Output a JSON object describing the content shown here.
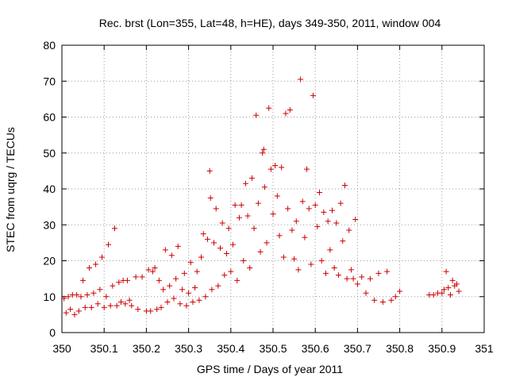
{
  "chart_data": {
    "type": "scatter",
    "title": "Rec. brst (Lon=355, Lat=48, h=HE), days 349-350, 2011, window 004",
    "xlabel": "GPS time / Days of year 2011",
    "ylabel": "STEC from uqrg / TECUs",
    "xlim": [
      350,
      351
    ],
    "ylim": [
      0,
      80
    ],
    "xticks": [
      350,
      350.1,
      350.2,
      350.3,
      350.4,
      350.5,
      350.6,
      350.7,
      350.8,
      350.9,
      351
    ],
    "xtick_labels": [
      "350",
      "350.1",
      "350.2",
      "350.3",
      "350.4",
      "350.5",
      "350.6",
      "350.7",
      "350.8",
      "350.9",
      "351"
    ],
    "yticks": [
      0,
      10,
      20,
      30,
      40,
      50,
      60,
      70,
      80
    ],
    "ytick_labels": [
      "0",
      "10",
      "20",
      "30",
      "40",
      "50",
      "60",
      "70",
      "80"
    ],
    "grid": true,
    "marker": "plus",
    "color": "#cc0000",
    "series": [
      {
        "name": "STEC",
        "points": [
          [
            350.005,
            9.5
          ],
          [
            350.01,
            5.5
          ],
          [
            350.015,
            10.0
          ],
          [
            350.02,
            6.5
          ],
          [
            350.025,
            10.5
          ],
          [
            350.03,
            5.0
          ],
          [
            350.035,
            10.5
          ],
          [
            350.04,
            6.0
          ],
          [
            350.045,
            10.0
          ],
          [
            350.05,
            14.5
          ],
          [
            350.055,
            7.0
          ],
          [
            350.06,
            10.5
          ],
          [
            350.065,
            18.0
          ],
          [
            350.07,
            7.0
          ],
          [
            350.075,
            11.0
          ],
          [
            350.08,
            19.0
          ],
          [
            350.085,
            8.0
          ],
          [
            350.09,
            12.0
          ],
          [
            350.095,
            21.0
          ],
          [
            350.1,
            7.0
          ],
          [
            350.105,
            10.0
          ],
          [
            350.11,
            24.5
          ],
          [
            350.115,
            7.5
          ],
          [
            350.12,
            13.0
          ],
          [
            350.125,
            29.0
          ],
          [
            350.13,
            7.5
          ],
          [
            350.135,
            14.0
          ],
          [
            350.14,
            8.5
          ],
          [
            350.145,
            14.5
          ],
          [
            350.15,
            8.0
          ],
          [
            350.155,
            14.5
          ],
          [
            350.16,
            9.0
          ],
          [
            350.165,
            7.5
          ],
          [
            350.175,
            15.5
          ],
          [
            350.18,
            6.5
          ],
          [
            350.19,
            15.5
          ],
          [
            350.2,
            6.0
          ],
          [
            350.205,
            17.5
          ],
          [
            350.21,
            6.0
          ],
          [
            350.215,
            17.0
          ],
          [
            350.22,
            18.0
          ],
          [
            350.225,
            6.5
          ],
          [
            350.23,
            14.5
          ],
          [
            350.235,
            7.0
          ],
          [
            350.24,
            12.0
          ],
          [
            350.245,
            23.0
          ],
          [
            350.25,
            8.5
          ],
          [
            350.255,
            13.0
          ],
          [
            350.26,
            21.5
          ],
          [
            350.265,
            9.5
          ],
          [
            350.27,
            15.0
          ],
          [
            350.275,
            24.0
          ],
          [
            350.28,
            8.0
          ],
          [
            350.285,
            12.0
          ],
          [
            350.29,
            16.5
          ],
          [
            350.295,
            7.5
          ],
          [
            350.3,
            11.0
          ],
          [
            350.305,
            19.5
          ],
          [
            350.31,
            8.5
          ],
          [
            350.315,
            12.5
          ],
          [
            350.32,
            17.0
          ],
          [
            350.325,
            9.0
          ],
          [
            350.33,
            21.0
          ],
          [
            350.335,
            27.5
          ],
          [
            350.34,
            10.0
          ],
          [
            350.345,
            26.0
          ],
          [
            350.35,
            45.0
          ],
          [
            350.352,
            37.5
          ],
          [
            350.355,
            12.0
          ],
          [
            350.36,
            25.0
          ],
          [
            350.365,
            34.5
          ],
          [
            350.37,
            13.0
          ],
          [
            350.375,
            23.5
          ],
          [
            350.38,
            30.5
          ],
          [
            350.385,
            16.0
          ],
          [
            350.39,
            22.0
          ],
          [
            350.395,
            29.0
          ],
          [
            350.4,
            17.0
          ],
          [
            350.405,
            24.5
          ],
          [
            350.41,
            35.5
          ],
          [
            350.415,
            14.5
          ],
          [
            350.42,
            32.0
          ],
          [
            350.425,
            35.5
          ],
          [
            350.43,
            20.0
          ],
          [
            350.435,
            41.5
          ],
          [
            350.44,
            32.5
          ],
          [
            350.445,
            18.0
          ],
          [
            350.45,
            43.0
          ],
          [
            350.455,
            29.0
          ],
          [
            350.46,
            60.5
          ],
          [
            350.465,
            36.0
          ],
          [
            350.47,
            22.5
          ],
          [
            350.475,
            50.0
          ],
          [
            350.478,
            51.0
          ],
          [
            350.48,
            40.5
          ],
          [
            350.485,
            25.0
          ],
          [
            350.49,
            62.5
          ],
          [
            350.495,
            45.5
          ],
          [
            350.5,
            33.0
          ],
          [
            350.505,
            46.5
          ],
          [
            350.51,
            38.0
          ],
          [
            350.515,
            27.0
          ],
          [
            350.52,
            46.0
          ],
          [
            350.525,
            21.0
          ],
          [
            350.53,
            61.0
          ],
          [
            350.535,
            34.5
          ],
          [
            350.54,
            62.0
          ],
          [
            350.545,
            28.5
          ],
          [
            350.55,
            20.5
          ],
          [
            350.555,
            31.0
          ],
          [
            350.56,
            17.5
          ],
          [
            350.565,
            70.5
          ],
          [
            350.57,
            36.5
          ],
          [
            350.575,
            26.5
          ],
          [
            350.58,
            45.5
          ],
          [
            350.585,
            34.5
          ],
          [
            350.59,
            19.0
          ],
          [
            350.595,
            66.0
          ],
          [
            350.6,
            35.5
          ],
          [
            350.605,
            29.5
          ],
          [
            350.61,
            39.0
          ],
          [
            350.615,
            20.0
          ],
          [
            350.62,
            33.5
          ],
          [
            350.625,
            16.5
          ],
          [
            350.63,
            31.0
          ],
          [
            350.635,
            23.0
          ],
          [
            350.64,
            34.0
          ],
          [
            350.645,
            18.0
          ],
          [
            350.65,
            30.5
          ],
          [
            350.655,
            16.0
          ],
          [
            350.66,
            36.0
          ],
          [
            350.665,
            25.5
          ],
          [
            350.67,
            41.0
          ],
          [
            350.675,
            15.0
          ],
          [
            350.68,
            28.5
          ],
          [
            350.685,
            17.5
          ],
          [
            350.69,
            15.0
          ],
          [
            350.695,
            31.5
          ],
          [
            350.7,
            13.5
          ],
          [
            350.71,
            15.5
          ],
          [
            350.72,
            11.0
          ],
          [
            350.73,
            15.0
          ],
          [
            350.74,
            9.0
          ],
          [
            350.75,
            16.5
          ],
          [
            350.76,
            8.5
          ],
          [
            350.77,
            17.0
          ],
          [
            350.78,
            9.0
          ],
          [
            350.79,
            10.0
          ],
          [
            350.8,
            11.5
          ],
          [
            350.87,
            10.5
          ],
          [
            350.88,
            10.5
          ],
          [
            350.89,
            11.0
          ],
          [
            350.9,
            11.0
          ],
          [
            350.905,
            12.0
          ],
          [
            350.91,
            17.0
          ],
          [
            350.915,
            12.5
          ],
          [
            350.92,
            10.5
          ],
          [
            350.925,
            14.5
          ],
          [
            350.93,
            13.0
          ],
          [
            350.935,
            13.5
          ],
          [
            350.94,
            11.5
          ]
        ]
      }
    ]
  }
}
